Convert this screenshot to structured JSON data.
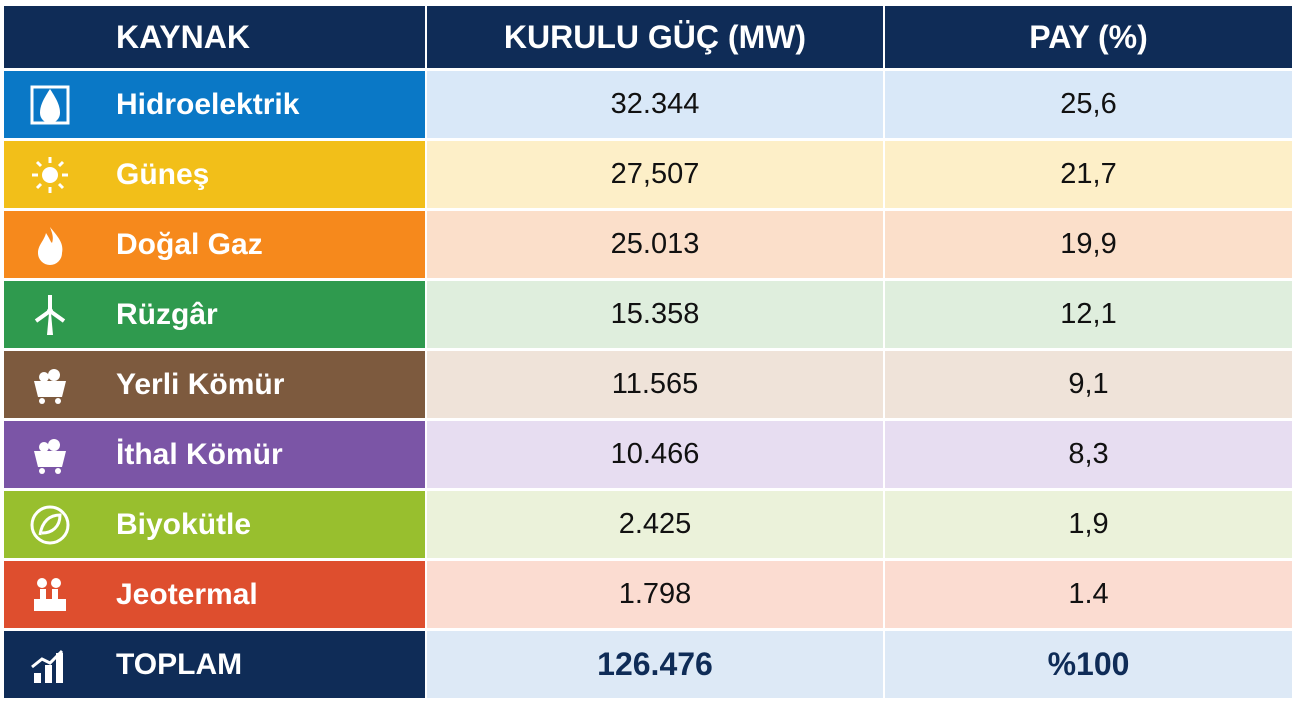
{
  "table": {
    "header": [
      "KAYNAK",
      "KURULU GÜÇ (MW)",
      "PAY (%)"
    ],
    "rows": [
      [
        "Hidroelektrik",
        "32.344",
        "25,6"
      ],
      [
        "Güneş",
        "27,507",
        "21,7"
      ],
      [
        "Doğal Gaz",
        "25.013",
        "19,9"
      ],
      [
        "Rüzgâr",
        "15.358",
        "12,1"
      ],
      [
        "Yerli Kömür",
        "11.565",
        "9,1"
      ],
      [
        "İthal Kömür",
        "10.466",
        "8,3"
      ],
      [
        "Biyokütle",
        "2.425",
        "1,9"
      ],
      [
        "Jeotermal",
        "1.798",
        "1.4"
      ]
    ],
    "total": [
      "TOPLAM",
      "126.476",
      "%100"
    ]
  }
}
